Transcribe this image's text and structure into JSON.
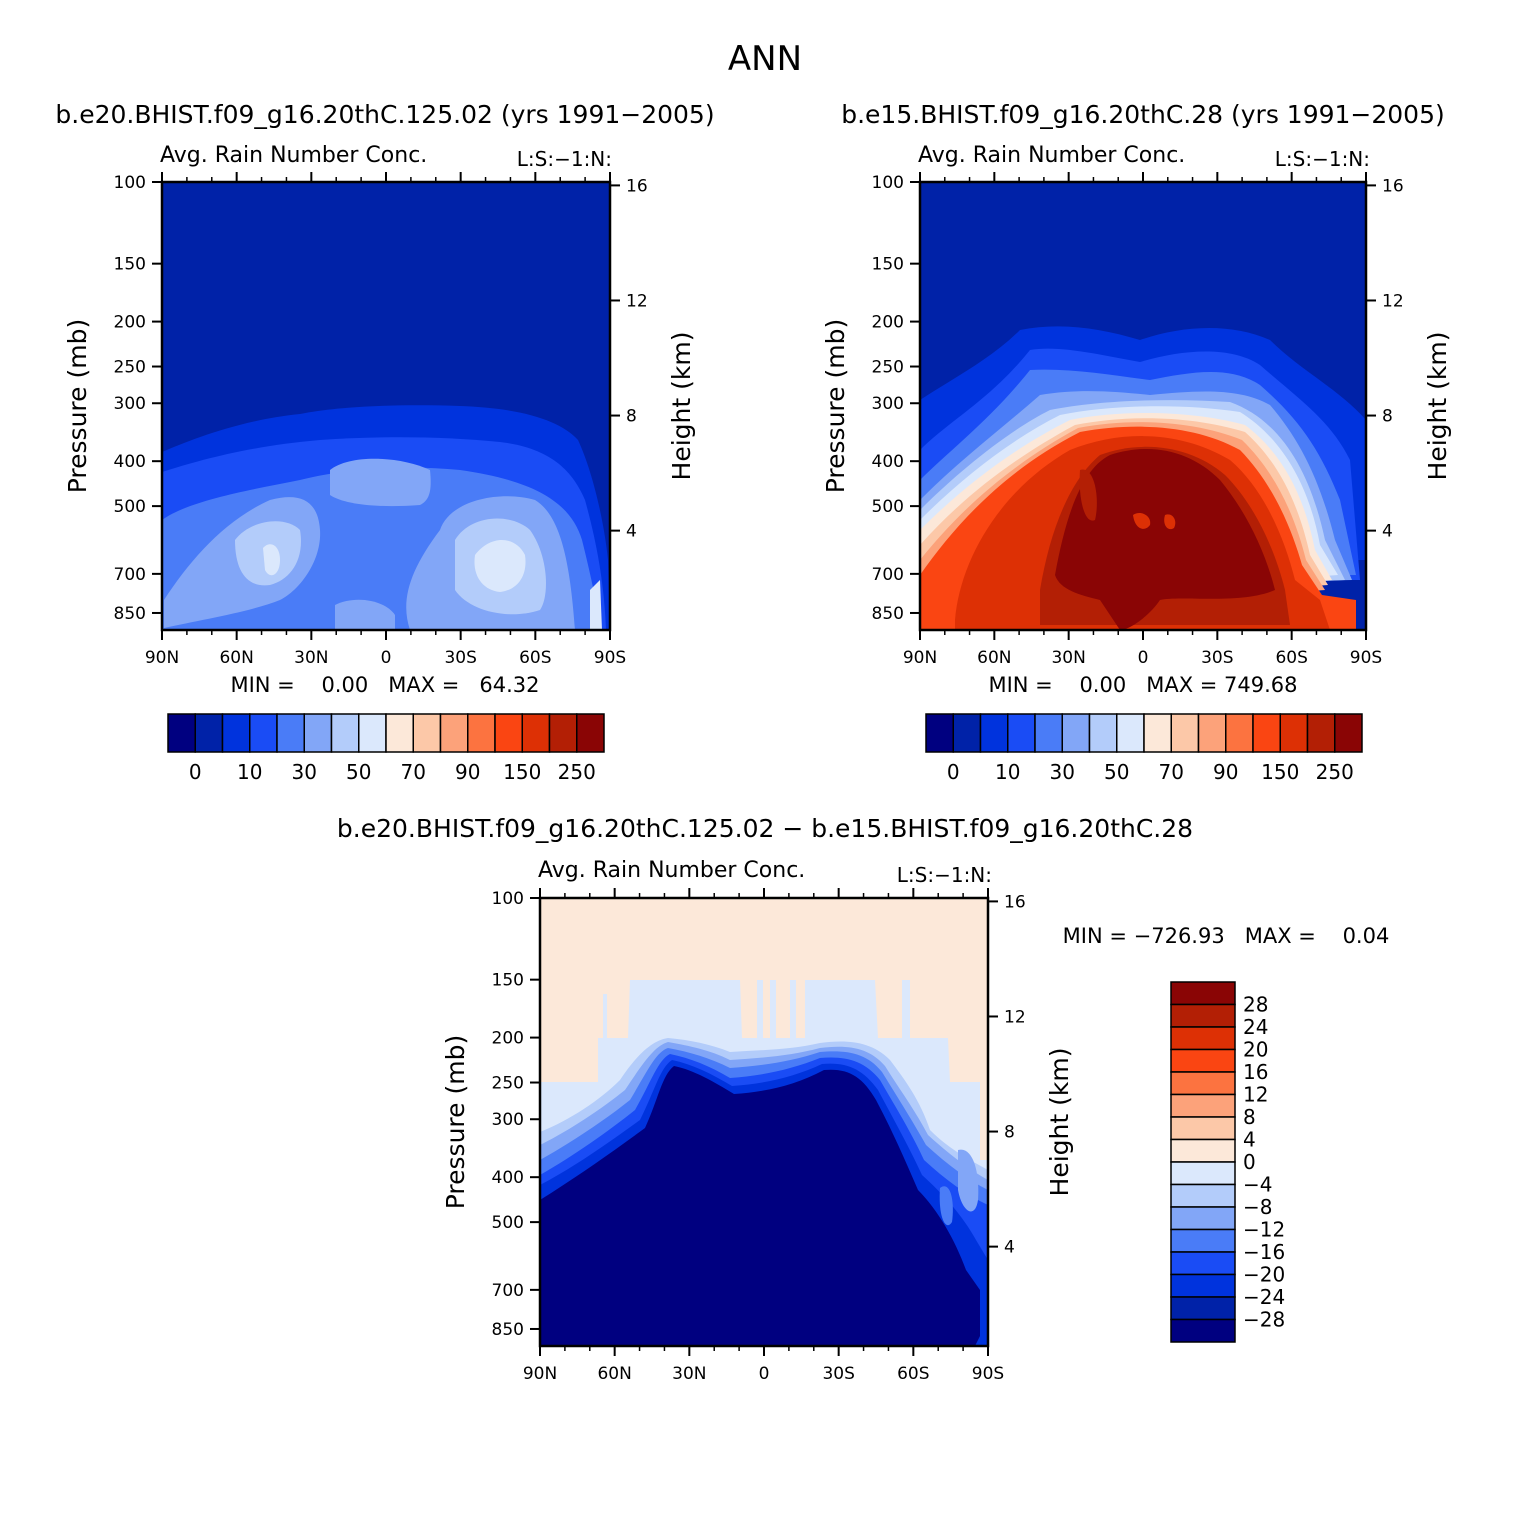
{
  "figure_title": "ANN",
  "palette": {
    "blue_red_14": [
      "#000080",
      "#0022a8",
      "#0033dd",
      "#1a4cf5",
      "#4a7cf7",
      "#82a6f7",
      "#b3ccfa",
      "#dbe8fc",
      "#fce8d9",
      "#fcc8a8",
      "#fca27a",
      "#fc7340",
      "#fa4512",
      "#dd3005",
      "#b31f05",
      "#8a0505"
    ],
    "diff_levels": [
      "#000080",
      "#0022a8",
      "#0033dd",
      "#1a4cf5",
      "#4a7cf7",
      "#82a6f7",
      "#b3ccfa",
      "#dbe8fc",
      "#fce8d9",
      "#fcc8a8",
      "#fca27a",
      "#fc7340",
      "#fa4512",
      "#dd3005",
      "#b31f05",
      "#8a0505"
    ]
  },
  "chart_data": [
    {
      "type": "heatmap",
      "title": "b.e20.BHIST.f09_g16.20thC.125.02 (yrs 1991−2005)",
      "subtitle": "Avg. Rain Number Conc.",
      "corner_label": "L:S:−1:N:",
      "xlabel": "",
      "ylabel": "Pressure (mb)",
      "ylabel_right": "Height (km)",
      "x_tick_labels": [
        "90N",
        "60N",
        "30N",
        "0",
        "30S",
        "60S",
        "90S"
      ],
      "y_tick_labels": [
        "100",
        "150",
        "200",
        "250",
        "300",
        "400",
        "500",
        "700",
        "850"
      ],
      "y_tick_values": [
        100,
        150,
        200,
        250,
        300,
        400,
        500,
        700,
        850
      ],
      "y_right_tick_labels": [
        "16",
        "12",
        "8",
        "4"
      ],
      "ylim": [
        100,
        925
      ],
      "yscale": "log",
      "stats": "MIN =    0.00   MAX =   64.32",
      "colorbar_labels": [
        "0",
        "10",
        "30",
        "50",
        "70",
        "90",
        "150",
        "250"
      ],
      "min": 0.0,
      "max": 64.32
    },
    {
      "type": "heatmap",
      "title": "b.e15.BHIST.f09_g16.20thC.28 (yrs 1991−2005)",
      "subtitle": "Avg. Rain Number Conc.",
      "corner_label": "L:S:−1:N:",
      "xlabel": "",
      "ylabel": "Pressure (mb)",
      "ylabel_right": "Height (km)",
      "x_tick_labels": [
        "90N",
        "60N",
        "30N",
        "0",
        "30S",
        "60S",
        "90S"
      ],
      "y_tick_labels": [
        "100",
        "150",
        "200",
        "250",
        "300",
        "400",
        "500",
        "700",
        "850"
      ],
      "y_tick_values": [
        100,
        150,
        200,
        250,
        300,
        400,
        500,
        700,
        850
      ],
      "y_right_tick_labels": [
        "16",
        "12",
        "8",
        "4"
      ],
      "ylim": [
        100,
        925
      ],
      "yscale": "log",
      "stats": "MIN =    0.00   MAX = 749.68",
      "colorbar_labels": [
        "0",
        "10",
        "30",
        "50",
        "70",
        "90",
        "150",
        "250"
      ],
      "min": 0.0,
      "max": 749.68
    },
    {
      "type": "heatmap",
      "title": "b.e20.BHIST.f09_g16.20thC.125.02 − b.e15.BHIST.f09_g16.20thC.28",
      "subtitle": "Avg. Rain Number Conc.",
      "corner_label": "L:S:−1:N:",
      "xlabel": "",
      "ylabel": "Pressure (mb)",
      "ylabel_right": "Height (km)",
      "x_tick_labels": [
        "90N",
        "60N",
        "30N",
        "0",
        "30S",
        "60S",
        "90S"
      ],
      "y_tick_labels": [
        "100",
        "150",
        "200",
        "250",
        "300",
        "400",
        "500",
        "700",
        "850"
      ],
      "y_tick_values": [
        100,
        150,
        200,
        250,
        300,
        400,
        500,
        700,
        850
      ],
      "y_right_tick_labels": [
        "16",
        "12",
        "8",
        "4"
      ],
      "ylim": [
        100,
        925
      ],
      "yscale": "log",
      "stats": "MIN = −726.93   MAX =    0.04",
      "colorbar_labels": [
        "28",
        "24",
        "20",
        "16",
        "12",
        "8",
        "4",
        "0",
        "−4",
        "−8",
        "−12",
        "−16",
        "−20",
        "−24",
        "−28"
      ],
      "min": -726.93,
      "max": 0.04
    }
  ]
}
